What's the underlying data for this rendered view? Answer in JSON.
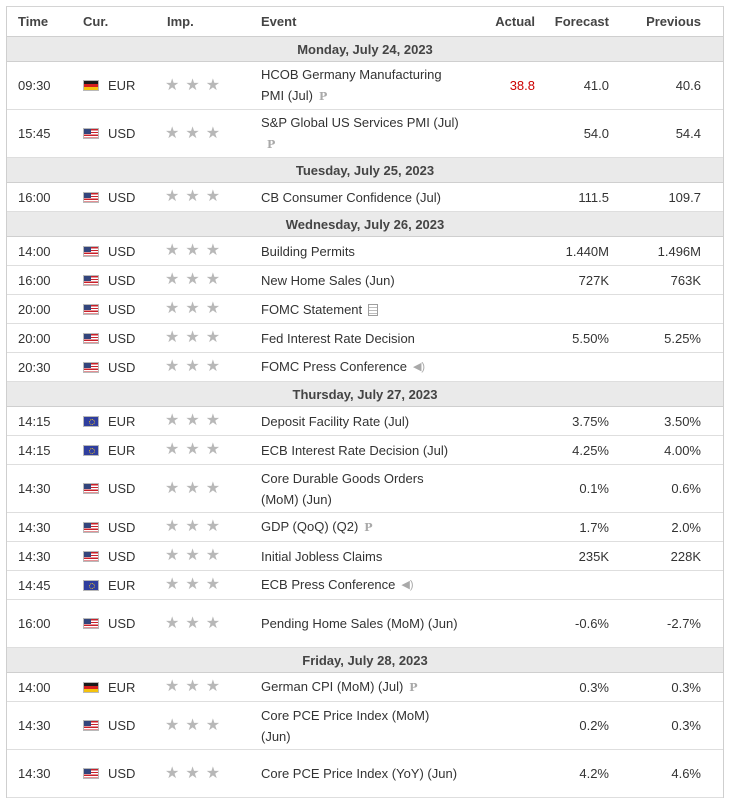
{
  "columns": {
    "time": "Time",
    "currency": "Cur.",
    "importance": "Imp.",
    "event": "Event",
    "actual": "Actual",
    "forecast": "Forecast",
    "previous": "Previous"
  },
  "colors": {
    "actual_below": "#cc0000",
    "day_header_bg": "#eaeaea",
    "star": "#b8b8b8"
  },
  "days": [
    {
      "label": "Monday, July 24, 2023",
      "events": [
        {
          "time": "09:30",
          "flag": "flag-germany-icon",
          "currency": "EUR",
          "event": "HCOB Germany Manufacturing PMI (Jul)",
          "icon": "preliminary-icon",
          "actual": "38.8",
          "forecast": "41.0",
          "previous": "40.6"
        },
        {
          "time": "15:45",
          "flag": "flag-usa-icon",
          "currency": "USD",
          "event": "S&P Global US Services PMI (Jul)",
          "icon": "preliminary-icon",
          "actual": "",
          "forecast": "54.0",
          "previous": "54.4"
        }
      ]
    },
    {
      "label": "Tuesday, July 25, 2023",
      "events": [
        {
          "time": "16:00",
          "flag": "flag-usa-icon",
          "currency": "USD",
          "event": "CB Consumer Confidence (Jul)",
          "icon": "",
          "actual": "",
          "forecast": "111.5",
          "previous": "109.7"
        }
      ]
    },
    {
      "label": "Wednesday, July 26, 2023",
      "events": [
        {
          "time": "14:00",
          "flag": "flag-usa-icon",
          "currency": "USD",
          "event": "Building Permits",
          "icon": "",
          "actual": "",
          "forecast": "1.440M",
          "previous": "1.496M"
        },
        {
          "time": "16:00",
          "flag": "flag-usa-icon",
          "currency": "USD",
          "event": "New Home Sales (Jun)",
          "icon": "",
          "actual": "",
          "forecast": "727K",
          "previous": "763K"
        },
        {
          "time": "20:00",
          "flag": "flag-usa-icon",
          "currency": "USD",
          "event": "FOMC Statement",
          "icon": "document-icon",
          "actual": "",
          "forecast": "",
          "previous": ""
        },
        {
          "time": "20:00",
          "flag": "flag-usa-icon",
          "currency": "USD",
          "event": "Fed Interest Rate Decision",
          "icon": "",
          "actual": "",
          "forecast": "5.50%",
          "previous": "5.25%"
        },
        {
          "time": "20:30",
          "flag": "flag-usa-icon",
          "currency": "USD",
          "event": "FOMC Press Conference",
          "icon": "speaker-icon",
          "actual": "",
          "forecast": "",
          "previous": ""
        }
      ]
    },
    {
      "label": "Thursday, July 27, 2023",
      "events": [
        {
          "time": "14:15",
          "flag": "flag-eu-icon",
          "currency": "EUR",
          "event": "Deposit Facility Rate (Jul)",
          "icon": "",
          "actual": "",
          "forecast": "3.75%",
          "previous": "3.50%"
        },
        {
          "time": "14:15",
          "flag": "flag-eu-icon",
          "currency": "EUR",
          "event": "ECB Interest Rate Decision (Jul)",
          "icon": "",
          "actual": "",
          "forecast": "4.25%",
          "previous": "4.00%"
        },
        {
          "time": "14:30",
          "flag": "flag-usa-icon",
          "currency": "USD",
          "event": "Core Durable Goods Orders (MoM) (Jun)",
          "icon": "",
          "actual": "",
          "forecast": "0.1%",
          "previous": "0.6%"
        },
        {
          "time": "14:30",
          "flag": "flag-usa-icon",
          "currency": "USD",
          "event": "GDP (QoQ) (Q2)",
          "icon": "preliminary-icon",
          "actual": "",
          "forecast": "1.7%",
          "previous": "2.0%"
        },
        {
          "time": "14:30",
          "flag": "flag-usa-icon",
          "currency": "USD",
          "event": "Initial Jobless Claims",
          "icon": "",
          "actual": "",
          "forecast": "235K",
          "previous": "228K"
        },
        {
          "time": "14:45",
          "flag": "flag-eu-icon",
          "currency": "EUR",
          "event": "ECB Press Conference",
          "icon": "speaker-icon",
          "actual": "",
          "forecast": "",
          "previous": ""
        },
        {
          "time": "16:00",
          "flag": "flag-usa-icon",
          "currency": "USD",
          "event": "Pending Home Sales (MoM) (Jun)",
          "icon": "",
          "actual": "",
          "forecast": "-0.6%",
          "previous": "-2.7%"
        }
      ]
    },
    {
      "label": "Friday, July 28, 2023",
      "events": [
        {
          "time": "14:00",
          "flag": "flag-germany-icon",
          "currency": "EUR",
          "event": "German CPI (MoM) (Jul)",
          "icon": "preliminary-icon",
          "actual": "",
          "forecast": "0.3%",
          "previous": "0.3%"
        },
        {
          "time": "14:30",
          "flag": "flag-usa-icon",
          "currency": "USD",
          "event": "Core PCE Price Index (MoM) (Jun)",
          "icon": "",
          "actual": "",
          "forecast": "0.2%",
          "previous": "0.3%"
        },
        {
          "time": "14:30",
          "flag": "flag-usa-icon",
          "currency": "USD",
          "event": "Core PCE Price Index (YoY) (Jun)",
          "icon": "",
          "actual": "",
          "forecast": "4.2%",
          "previous": "4.6%"
        }
      ]
    }
  ]
}
